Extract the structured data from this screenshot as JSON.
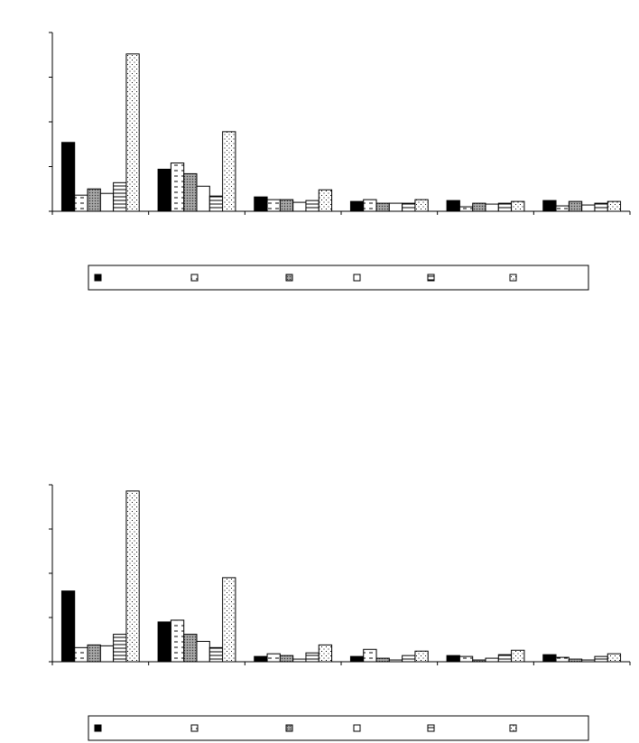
{
  "chart_data": [
    {
      "type": "bar",
      "title": "",
      "xlabel": "",
      "ylabel": "",
      "ylim": [
        0,
        200
      ],
      "categories": [
        "",
        "",
        "",
        "",
        "",
        ""
      ],
      "series": [
        {
          "fill": "solid-black",
          "values": [
            77,
            47,
            16,
            11,
            12,
            12
          ]
        },
        {
          "fill": "white-dash",
          "values": [
            18,
            54,
            13,
            13,
            5,
            6
          ]
        },
        {
          "fill": "grey-dots",
          "values": [
            25,
            42,
            13,
            9,
            9,
            11
          ]
        },
        {
          "fill": "white",
          "values": [
            20,
            28,
            10,
            9,
            8,
            7
          ]
        },
        {
          "fill": "horiz-lines",
          "values": [
            32,
            17,
            12,
            9,
            9,
            9
          ]
        },
        {
          "fill": "white-dots",
          "values": [
            176,
            89,
            24,
            13,
            11,
            11
          ]
        }
      ],
      "legend": {
        "placement": "bottom",
        "entries": [
          "",
          "",
          "",
          "",
          "",
          ""
        ]
      }
    },
    {
      "type": "bar",
      "title": "",
      "xlabel": "",
      "ylabel": "",
      "ylim": [
        0,
        200
      ],
      "categories": [
        "",
        "",
        "",
        "",
        "",
        ""
      ],
      "series": [
        {
          "fill": "solid-black",
          "values": [
            80,
            45,
            6,
            6,
            7,
            8
          ]
        },
        {
          "fill": "white-dash",
          "values": [
            16,
            47,
            9,
            14,
            6,
            5
          ]
        },
        {
          "fill": "grey-dots",
          "values": [
            19,
            31,
            7,
            4,
            2,
            3
          ]
        },
        {
          "fill": "white",
          "values": [
            18,
            23,
            3,
            2,
            4,
            2
          ]
        },
        {
          "fill": "horiz-lines",
          "values": [
            31,
            16,
            10,
            7,
            8,
            6
          ]
        },
        {
          "fill": "white-dots",
          "values": [
            193,
            95,
            19,
            12,
            13,
            9
          ]
        }
      ],
      "legend": {
        "placement": "bottom",
        "entries": [
          "",
          "",
          "",
          "",
          "",
          ""
        ]
      }
    }
  ]
}
